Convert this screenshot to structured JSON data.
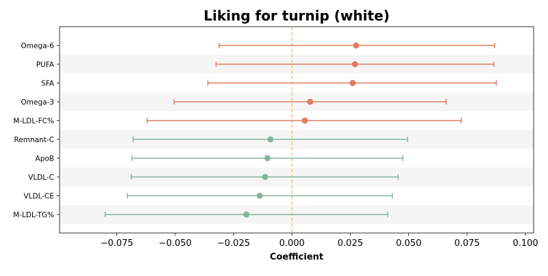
{
  "chart_data": {
    "type": "forest",
    "title": "Liking for turnip (white)",
    "xlabel": "Coefficient",
    "ylabel": "",
    "xlim": [
      -0.0995,
      0.1035
    ],
    "xticks": [
      -0.075,
      -0.05,
      -0.025,
      0.0,
      0.025,
      0.05,
      0.075,
      0.1
    ],
    "xtick_labels": [
      "−0.075",
      "−0.050",
      "−0.025",
      "0.000",
      "0.025",
      "0.050",
      "0.075",
      "0.100"
    ],
    "reference_line": 0.0,
    "grid": false,
    "row_stripes": true,
    "colors": {
      "positive": "#e07b5f",
      "negative": "#82b59b",
      "reference": "#f5c27a",
      "stripe": "#f5f5f5"
    },
    "rows": [
      {
        "label": "Omega-6",
        "estimate": 0.0275,
        "ci_low": -0.0312,
        "ci_high": 0.0868
      },
      {
        "label": "PUFA",
        "estimate": 0.027,
        "ci_low": -0.0325,
        "ci_high": 0.0865
      },
      {
        "label": "SFA",
        "estimate": 0.026,
        "ci_low": -0.036,
        "ci_high": 0.0875
      },
      {
        "label": "Omega-3",
        "estimate": 0.0078,
        "ci_low": -0.0505,
        "ci_high": 0.066
      },
      {
        "label": "M-LDL-FC%",
        "estimate": 0.0055,
        "ci_low": -0.062,
        "ci_high": 0.0725
      },
      {
        "label": "Remnant-C",
        "estimate": -0.0092,
        "ci_low": -0.068,
        "ci_high": 0.0495
      },
      {
        "label": "ApoB",
        "estimate": -0.0105,
        "ci_low": -0.0685,
        "ci_high": 0.0475
      },
      {
        "label": "VLDL-C",
        "estimate": -0.0115,
        "ci_low": -0.0688,
        "ci_high": 0.0455
      },
      {
        "label": "VLDL-CE",
        "estimate": -0.0138,
        "ci_low": -0.0705,
        "ci_high": 0.043
      },
      {
        "label": "M-LDL-TG%",
        "estimate": -0.0195,
        "ci_low": -0.08,
        "ci_high": 0.041
      }
    ]
  }
}
